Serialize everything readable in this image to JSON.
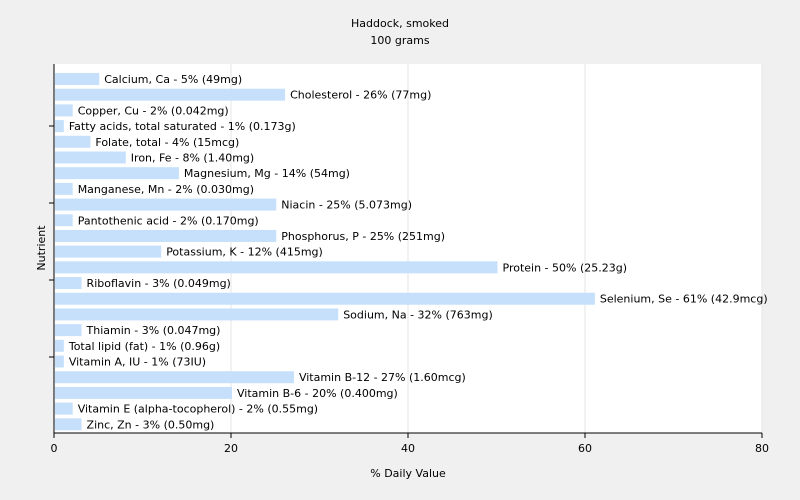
{
  "chart_data": {
    "type": "bar",
    "orientation": "horizontal",
    "title": "Haddock, smoked",
    "subtitle": "100 grams",
    "xlabel": "% Daily Value",
    "ylabel": "Nutrient",
    "xlim": [
      0,
      80
    ],
    "xticks": [
      0,
      20,
      40,
      60,
      80
    ],
    "grid": true,
    "bar_color": "#c6e0fb",
    "categories": [
      "Calcium, Ca",
      "Cholesterol",
      "Copper, Cu",
      "Fatty acids, total saturated",
      "Folate, total",
      "Iron, Fe",
      "Magnesium, Mg",
      "Manganese, Mn",
      "Niacin",
      "Pantothenic acid",
      "Phosphorus, P",
      "Potassium, K",
      "Protein",
      "Riboflavin",
      "Selenium, Se",
      "Sodium, Na",
      "Thiamin",
      "Total lipid (fat)",
      "Vitamin A, IU",
      "Vitamin B-12",
      "Vitamin B-6",
      "Vitamin E (alpha-tocopherol)",
      "Zinc, Zn"
    ],
    "values": [
      5,
      26,
      2,
      1,
      4,
      8,
      14,
      2,
      25,
      2,
      25,
      12,
      50,
      3,
      61,
      32,
      3,
      1,
      1,
      27,
      20,
      2,
      3
    ],
    "labels": [
      "Calcium, Ca - 5% (49mg)",
      "Cholesterol - 26% (77mg)",
      "Copper, Cu - 2% (0.042mg)",
      "Fatty acids, total saturated - 1% (0.173g)",
      "Folate, total - 4% (15mcg)",
      "Iron, Fe - 8% (1.40mg)",
      "Magnesium, Mg - 14% (54mg)",
      "Manganese, Mn - 2% (0.030mg)",
      "Niacin - 25% (5.073mg)",
      "Pantothenic acid - 2% (0.170mg)",
      "Phosphorus, P - 25% (251mg)",
      "Potassium, K - 12% (415mg)",
      "Protein - 50% (25.23g)",
      "Riboflavin - 3% (0.049mg)",
      "Selenium, Se - 61% (42.9mcg)",
      "Sodium, Na - 32% (763mg)",
      "Thiamin - 3% (0.047mg)",
      "Total lipid (fat) - 1% (0.96g)",
      "Vitamin A, IU - 1% (73IU)",
      "Vitamin B-12 - 27% (1.60mcg)",
      "Vitamin B-6 - 20% (0.400mg)",
      "Vitamin E (alpha-tocopherol) - 2% (0.55mg)",
      "Zinc, Zn - 3% (0.50mg)"
    ]
  }
}
